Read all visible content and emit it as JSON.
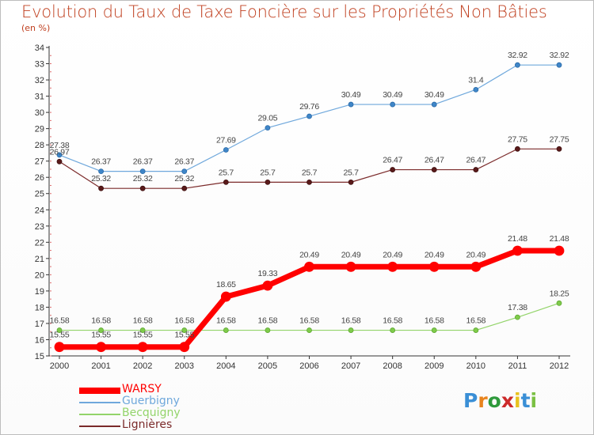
{
  "header": {
    "title": "Evolution du Taux de Taxe Foncière sur les Propriétés Non Bâties",
    "unit": "(en %)"
  },
  "logo": {
    "text": "Proxiti",
    "colors": [
      "#3a8fd6",
      "#e8841e",
      "#2f9a3c",
      "#cc2a2a",
      "#e8c21e",
      "#3a8fd6",
      "#7bc043"
    ]
  },
  "chart_data": {
    "type": "line",
    "title": "Evolution du Taux de Taxe Foncière sur les Propriétés Non Bâties",
    "ylabel": "(en %)",
    "xlabel": "",
    "x": [
      "2000",
      "2001",
      "2002",
      "2003",
      "2004",
      "2005",
      "2006",
      "2007",
      "2008",
      "2009",
      "2010",
      "2011",
      "2012"
    ],
    "ylim": [
      15,
      34
    ],
    "yticks": [
      15,
      16,
      17,
      18,
      19,
      20,
      21,
      22,
      23,
      24,
      25,
      26,
      27,
      28,
      29,
      30,
      31,
      32,
      33,
      34
    ],
    "grid": false,
    "legend_position": "bottom-left",
    "series": [
      {
        "name": "WARSY",
        "color": "#ff0000",
        "values": [
          15.55,
          15.55,
          15.55,
          15.55,
          18.65,
          19.33,
          20.49,
          20.49,
          20.49,
          20.49,
          20.49,
          21.48,
          21.48
        ],
        "labels": [
          "15.55",
          "15.55",
          "15.55",
          "15.55",
          "18.65",
          "19.33",
          "20.49",
          "20.49",
          "20.49",
          "20.49",
          "20.49",
          "21.48",
          "21.48"
        ]
      },
      {
        "name": "Guerbigny",
        "color": "#6fa8dc",
        "values": [
          27.38,
          26.37,
          26.37,
          26.37,
          27.69,
          29.05,
          29.76,
          30.49,
          30.49,
          30.49,
          31.4,
          32.92,
          32.92
        ],
        "labels": [
          "27.38",
          "26.37",
          "26.37",
          "26.37",
          "27.69",
          "29.05",
          "29.76",
          "30.49",
          "30.49",
          "30.49",
          "31.4",
          "32.92",
          "32.92"
        ]
      },
      {
        "name": "Becquigny",
        "color": "#93d46a",
        "values": [
          16.58,
          16.58,
          16.58,
          16.58,
          16.58,
          16.58,
          16.58,
          16.58,
          16.58,
          16.58,
          16.58,
          17.38,
          18.25
        ],
        "labels": [
          "16.58",
          "16.58",
          "16.58",
          "16.58",
          "16.58",
          "16.58",
          "16.58",
          "16.58",
          "16.58",
          "16.58",
          "16.58",
          "17.38",
          "18.25"
        ]
      },
      {
        "name": "Lignières",
        "color": "#7b2a2a",
        "values": [
          26.97,
          25.32,
          25.32,
          25.32,
          25.7,
          25.7,
          25.7,
          25.7,
          26.47,
          26.47,
          26.47,
          27.75,
          27.75
        ],
        "labels": [
          "26.97",
          "25.32",
          "25.32",
          "25.32",
          "25.7",
          "25.7",
          "25.7",
          "25.7",
          "26.47",
          "26.47",
          "26.47",
          "27.75",
          "27.75"
        ]
      }
    ]
  }
}
